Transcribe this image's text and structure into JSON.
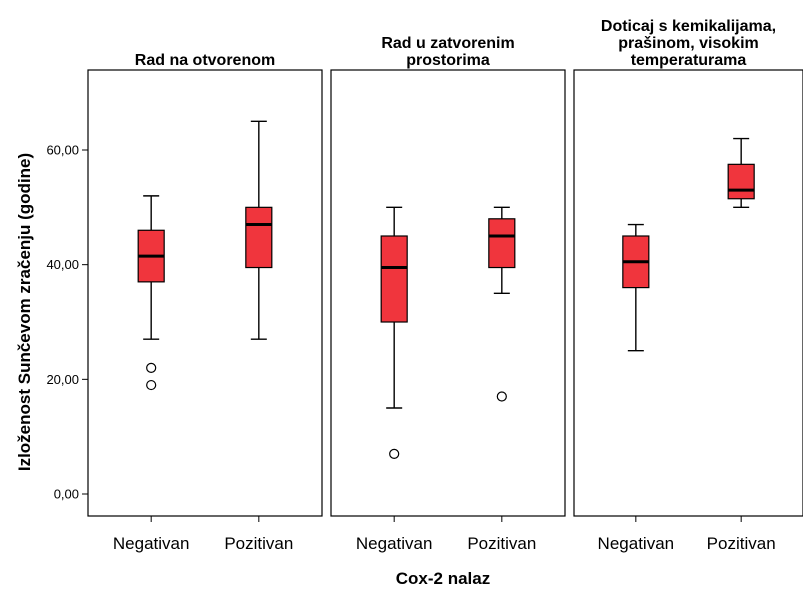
{
  "chart_data": {
    "type": "boxplot",
    "xlabel": "Cox-2 nalaz",
    "ylabel": "Izloženost Sunčevom zračenju (godine)",
    "ylim": [
      0,
      73
    ],
    "yticks": [
      0,
      20,
      40,
      60
    ],
    "ytick_labels": [
      "0,00",
      "20,00",
      "40,00",
      "60,00"
    ],
    "categories": [
      "Negativan",
      "Pozitivan"
    ],
    "box_color": "#f0353d",
    "panels": [
      {
        "title_lines": [
          "Rad na otvorenom"
        ],
        "boxes": [
          {
            "category": "Negativan",
            "whisker_low": 27,
            "q1": 37,
            "median": 41.5,
            "q3": 46,
            "whisker_high": 52,
            "outliers": [
              22,
              19
            ]
          },
          {
            "category": "Pozitivan",
            "whisker_low": 27,
            "q1": 39.5,
            "median": 47,
            "q3": 50,
            "whisker_high": 65,
            "outliers": []
          }
        ]
      },
      {
        "title_lines": [
          "Rad u zatvorenim",
          "prostorima"
        ],
        "boxes": [
          {
            "category": "Negativan",
            "whisker_low": 15,
            "q1": 30,
            "median": 39.5,
            "q3": 45,
            "whisker_high": 50,
            "outliers": [
              7
            ]
          },
          {
            "category": "Pozitivan",
            "whisker_low": 35,
            "q1": 39.5,
            "median": 45,
            "q3": 48,
            "whisker_high": 50,
            "outliers": [
              17
            ]
          }
        ]
      },
      {
        "title_lines": [
          "Doticaj s kemikalijama,",
          "prašinom, visokim",
          "temperaturama"
        ],
        "boxes": [
          {
            "category": "Negativan",
            "whisker_low": 25,
            "q1": 36,
            "median": 40.5,
            "q3": 45,
            "whisker_high": 47,
            "outliers": []
          },
          {
            "category": "Pozitivan",
            "whisker_low": 50,
            "q1": 51.5,
            "median": 53,
            "q3": 57.5,
            "whisker_high": 62,
            "outliers": []
          }
        ]
      }
    ]
  }
}
